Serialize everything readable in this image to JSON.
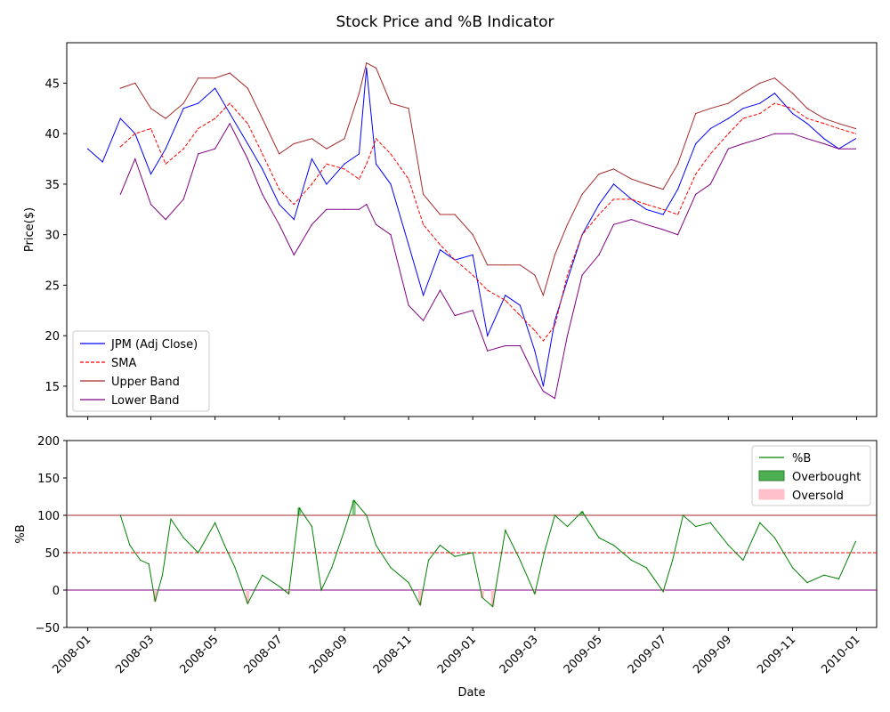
{
  "chart_data": [
    {
      "type": "line",
      "title": "Stock Price and %B Indicator",
      "xlabel": "",
      "ylabel": "Price($)",
      "ylim": [
        12,
        49
      ],
      "xlim": [
        "2007-12-12",
        "2010-01-20"
      ],
      "yticks": [
        "15",
        "20",
        "25",
        "30",
        "35",
        "40",
        "45"
      ],
      "legend_position": "lower-left",
      "grid": false,
      "dates": [
        "2008-01-01",
        "2008-01-15",
        "2008-02-01",
        "2008-02-15",
        "2008-03-01",
        "2008-03-15",
        "2008-04-01",
        "2008-04-15",
        "2008-05-01",
        "2008-05-15",
        "2008-06-01",
        "2008-06-15",
        "2008-07-01",
        "2008-07-15",
        "2008-08-01",
        "2008-08-15",
        "2008-09-01",
        "2008-09-15",
        "2008-09-22",
        "2008-10-01",
        "2008-10-15",
        "2008-11-01",
        "2008-11-15",
        "2008-12-01",
        "2008-12-15",
        "2009-01-01",
        "2009-01-15",
        "2009-02-01",
        "2009-02-15",
        "2009-03-01",
        "2009-03-09",
        "2009-03-20",
        "2009-04-01",
        "2009-04-15",
        "2009-05-01",
        "2009-05-15",
        "2009-06-01",
        "2009-06-15",
        "2009-07-01",
        "2009-07-15",
        "2009-08-01",
        "2009-08-15",
        "2009-09-01",
        "2009-09-15",
        "2009-10-01",
        "2009-10-15",
        "2009-11-01",
        "2009-11-15",
        "2009-12-01",
        "2009-12-15",
        "2009-12-31"
      ],
      "series": [
        {
          "name": "JPM (Adj Close)",
          "color": "#0000ff",
          "style": "solid",
          "values": [
            38.5,
            37.2,
            41.5,
            40.0,
            36.0,
            38.5,
            42.5,
            43.0,
            44.5,
            42.0,
            39.0,
            36.5,
            33.0,
            31.5,
            37.5,
            35.0,
            37.0,
            38.0,
            46.5,
            37.0,
            35.0,
            29.0,
            24.0,
            28.5,
            27.5,
            28.0,
            20.0,
            24.0,
            23.0,
            18.5,
            15.0,
            21.5,
            25.5,
            30.0,
            33.0,
            35.0,
            33.5,
            32.5,
            32.0,
            34.5,
            39.0,
            40.5,
            41.5,
            42.5,
            43.0,
            44.0,
            42.0,
            41.0,
            39.5,
            38.5,
            39.5
          ]
        },
        {
          "name": "SMA",
          "color": "#ff0000",
          "style": "dashed",
          "values": [
            null,
            null,
            38.7,
            40.0,
            40.5,
            37.0,
            38.5,
            40.5,
            41.5,
            43.0,
            41.0,
            38.0,
            34.5,
            33.0,
            35.0,
            37.0,
            36.5,
            35.5,
            37.0,
            39.5,
            38.0,
            35.5,
            31.0,
            29.0,
            27.5,
            26.0,
            24.5,
            23.5,
            22.0,
            20.5,
            19.5,
            21.0,
            26.0,
            30.0,
            32.0,
            33.5,
            33.5,
            33.0,
            32.5,
            32.0,
            36.0,
            38.0,
            40.0,
            41.5,
            42.0,
            43.0,
            42.5,
            41.5,
            41.0,
            40.5,
            40.0
          ]
        },
        {
          "name": "Upper Band",
          "color": "#a52a2a",
          "style": "solid",
          "values": [
            null,
            null,
            44.5,
            45.0,
            42.5,
            41.5,
            43.0,
            45.5,
            45.5,
            46.0,
            44.5,
            41.5,
            38.0,
            39.0,
            39.5,
            38.5,
            39.5,
            44.0,
            47.0,
            46.5,
            43.0,
            42.5,
            34.0,
            32.0,
            32.0,
            30.0,
            27.0,
            27.0,
            27.0,
            26.0,
            24.0,
            28.0,
            31.0,
            34.0,
            36.0,
            36.5,
            35.5,
            35.0,
            34.5,
            37.0,
            42.0,
            42.5,
            43.0,
            44.0,
            45.0,
            45.5,
            44.0,
            42.5,
            41.5,
            41.0,
            40.5
          ]
        },
        {
          "name": "Lower Band",
          "color": "#800080",
          "style": "solid",
          "values": [
            null,
            null,
            34.0,
            37.5,
            33.0,
            31.5,
            33.5,
            38.0,
            38.5,
            41.0,
            37.5,
            34.0,
            31.0,
            28.0,
            31.0,
            32.5,
            32.5,
            32.5,
            33.0,
            31.0,
            30.0,
            23.0,
            21.5,
            24.5,
            22.0,
            22.5,
            18.5,
            19.0,
            19.0,
            16.0,
            14.5,
            13.8,
            20.0,
            26.0,
            28.0,
            31.0,
            31.5,
            31.0,
            30.5,
            30.0,
            34.0,
            35.0,
            38.5,
            39.0,
            39.5,
            40.0,
            40.0,
            39.5,
            39.0,
            38.5,
            38.5
          ]
        }
      ]
    },
    {
      "type": "line",
      "title": "",
      "xlabel": "Date",
      "ylabel": "%B",
      "ylim": [
        -50,
        200
      ],
      "xlim": [
        "2007-12-12",
        "2010-01-20"
      ],
      "yticks": [
        "−50",
        "0",
        "50",
        "100",
        "150",
        "200"
      ],
      "xticks": [
        "2008-01",
        "2008-03",
        "2008-05",
        "2008-07",
        "2008-09",
        "2008-11",
        "2009-01",
        "2009-03",
        "2009-05",
        "2009-07",
        "2009-09",
        "2009-11",
        "2010-01"
      ],
      "legend_position": "top-right",
      "grid": false,
      "reference_lines": [
        {
          "value": 100,
          "color": "#a52a2a",
          "style": "solid"
        },
        {
          "value": 50,
          "color": "#ff0000",
          "style": "dashed"
        },
        {
          "value": 0,
          "color": "#800080",
          "style": "solid"
        }
      ],
      "dates": [
        "2008-02-01",
        "2008-02-10",
        "2008-02-20",
        "2008-02-28",
        "2008-03-05",
        "2008-03-12",
        "2008-03-20",
        "2008-04-01",
        "2008-04-15",
        "2008-05-01",
        "2008-05-10",
        "2008-05-20",
        "2008-06-01",
        "2008-06-15",
        "2008-07-01",
        "2008-07-10",
        "2008-07-20",
        "2008-08-01",
        "2008-08-10",
        "2008-08-20",
        "2008-09-01",
        "2008-09-10",
        "2008-09-22",
        "2008-10-01",
        "2008-10-15",
        "2008-11-01",
        "2008-11-12",
        "2008-11-20",
        "2008-12-01",
        "2008-12-15",
        "2009-01-01",
        "2009-01-10",
        "2009-01-20",
        "2009-02-01",
        "2009-02-15",
        "2009-03-01",
        "2009-03-10",
        "2009-03-20",
        "2009-04-01",
        "2009-04-15",
        "2009-05-01",
        "2009-05-15",
        "2009-06-01",
        "2009-06-15",
        "2009-07-01",
        "2009-07-10",
        "2009-07-20",
        "2009-08-01",
        "2009-08-15",
        "2009-09-01",
        "2009-09-15",
        "2009-10-01",
        "2009-10-15",
        "2009-11-01",
        "2009-11-15",
        "2009-12-01",
        "2009-12-15",
        "2009-12-31"
      ],
      "series": [
        {
          "name": "%B",
          "color": "#008000",
          "style": "solid",
          "values": [
            100,
            60,
            40,
            35,
            -15,
            20,
            95,
            70,
            50,
            90,
            60,
            30,
            -18,
            20,
            5,
            -5,
            110,
            85,
            0,
            30,
            80,
            120,
            100,
            60,
            30,
            10,
            -20,
            40,
            60,
            45,
            50,
            -10,
            -22,
            80,
            40,
            -5,
            50,
            100,
            85,
            105,
            70,
            60,
            40,
            30,
            -2,
            40,
            100,
            85,
            90,
            60,
            40,
            90,
            70,
            30,
            10,
            20,
            15,
            65
          ]
        }
      ]
    }
  ],
  "figure": {
    "title": "Stock Price and %B Indicator",
    "legend_top": [
      {
        "label": "JPM (Adj Close)",
        "color": "#0000ff",
        "style": "solid"
      },
      {
        "label": "SMA",
        "color": "#ff0000",
        "style": "dashed"
      },
      {
        "label": "Upper Band",
        "color": "#a52a2a",
        "style": "solid"
      },
      {
        "label": "Lower Band",
        "color": "#800080",
        "style": "solid"
      }
    ],
    "legend_bottom": [
      {
        "label": "%B",
        "color": "#008000",
        "kind": "line"
      },
      {
        "label": "Overbought",
        "color": "#4caf50",
        "kind": "patch"
      },
      {
        "label": "Oversold",
        "color": "#ffc0cb",
        "kind": "patch"
      }
    ]
  }
}
